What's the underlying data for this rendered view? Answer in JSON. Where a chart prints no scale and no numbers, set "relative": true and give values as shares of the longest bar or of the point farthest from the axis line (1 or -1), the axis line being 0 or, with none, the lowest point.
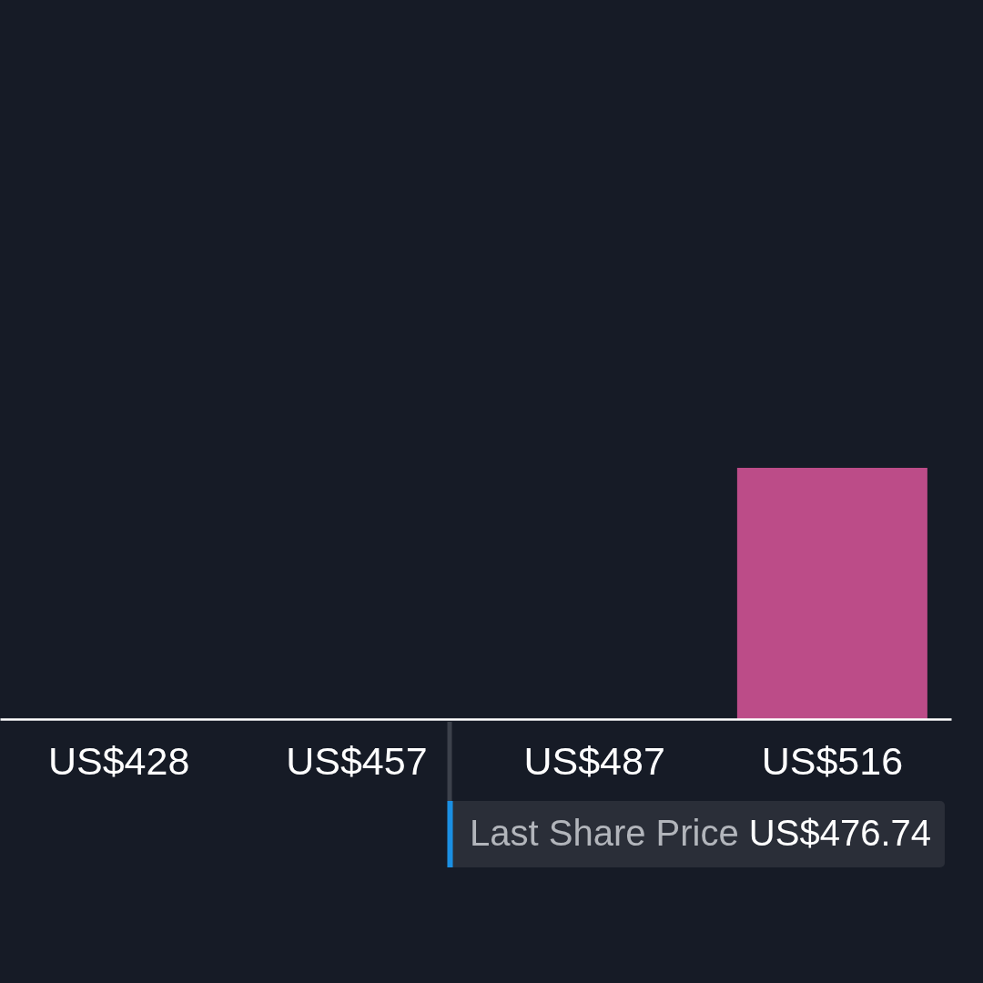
{
  "chart_data": {
    "type": "bar",
    "categories": [
      "US$428",
      "US$457",
      "US$487",
      "US$516"
    ],
    "values": [
      0,
      0,
      0,
      1
    ],
    "color": "#bc4c88",
    "relative": true,
    "annotations": [
      "Last Share Price US$476.74"
    ]
  }
}
